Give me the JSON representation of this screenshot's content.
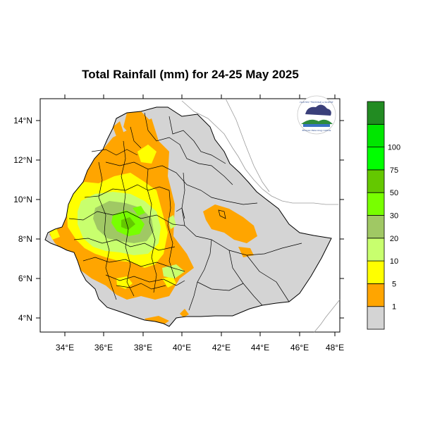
{
  "title": "Total Rainfall (mm) for 24-25 May 2025",
  "map": {
    "lon_ticks": [
      "34°E",
      "36°E",
      "38°E",
      "40°E",
      "42°E",
      "44°E",
      "46°E",
      "48°E"
    ],
    "lat_ticks": [
      "14°N",
      "12°N",
      "10°N",
      "8°N",
      "6°N",
      "4°N"
    ],
    "lon_range": [
      33,
      48.2
    ],
    "lat_range": [
      3.2,
      15
    ]
  },
  "legend": {
    "levels": [
      "1",
      "5",
      "10",
      "20",
      "30",
      "50",
      "75",
      "100"
    ],
    "colors": [
      "#d4d4d4",
      "#ffa500",
      "#ffff00",
      "#c8ff6e",
      "#a0c864",
      "#78ff00",
      "#64c800",
      "#00ff00",
      "#00e600",
      "#228b22"
    ]
  },
  "logo": {
    "text_top": "የኢትዮጵያ ሜቲዎሮሎጂ ኢንስቲትዩት",
    "text_bottom": "Ethiopian Meteorology Institute"
  },
  "colors": {
    "no_rain": "#d4d4d4",
    "orange": "#ffa500",
    "yellow": "#ffff00",
    "light_green": "#c8ff6e",
    "olive": "#a0c864",
    "green": "#78ff00"
  }
}
